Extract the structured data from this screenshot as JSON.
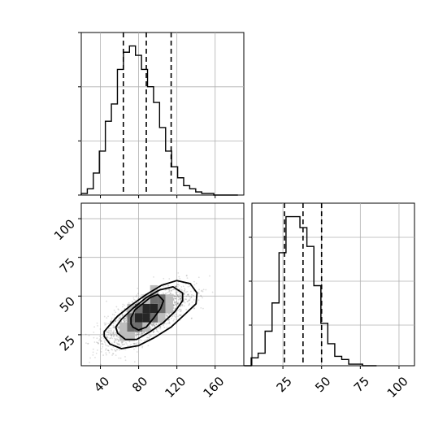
{
  "chart_data": {
    "type": "corner",
    "parameters": [
      {
        "index": 0,
        "range": [
          20,
          190
        ],
        "ticks": [
          40,
          80,
          120,
          160
        ],
        "tick_labels": [
          "40",
          "80",
          "120",
          "160"
        ]
      },
      {
        "index": 1,
        "range": [
          5,
          110
        ],
        "ticks": [
          25,
          50,
          75,
          100
        ],
        "tick_labels": [
          "25",
          "50",
          "75",
          "100"
        ]
      }
    ],
    "histograms": [
      {
        "parameter": 0,
        "bin_edges": [
          20,
          26.3,
          32.6,
          38.9,
          45.2,
          51.5,
          57.8,
          64.1,
          70.4,
          76.7,
          83,
          89.3,
          95.6,
          101.9,
          108.2,
          114.5,
          120.8,
          127.1,
          133.4,
          139.7,
          146,
          152.3,
          158.6,
          164.9,
          171.2,
          177.5,
          183.8
        ],
        "counts": [
          1,
          4,
          14,
          28,
          47,
          58,
          80,
          91,
          95,
          89,
          80,
          69,
          59,
          43,
          28,
          18,
          11,
          6,
          4,
          2,
          1,
          1,
          0,
          0,
          0,
          0
        ],
        "quantile_lines": [
          64,
          88,
          114
        ]
      },
      {
        "parameter": 1,
        "bin_edges": [
          0,
          4.5,
          9,
          13.5,
          18,
          22.5,
          27,
          31.5,
          36,
          40.5,
          45,
          49.5,
          54,
          58.5,
          63,
          67.5,
          72,
          76.5,
          81,
          85.5
        ],
        "counts": [
          0,
          5,
          8,
          22,
          40,
          72,
          95,
          95,
          88,
          76,
          51,
          27,
          14,
          6,
          4,
          1,
          1,
          0,
          0
        ],
        "quantile_lines": [
          26,
          38,
          50
        ]
      }
    ],
    "joint": {
      "x_parameter": 0,
      "y_parameter": 1,
      "center": [
        88,
        37
      ],
      "density_cells": [
        {
          "x": 80,
          "y": 36,
          "level": 3
        },
        {
          "x": 88,
          "y": 36,
          "level": 3
        },
        {
          "x": 88,
          "y": 42,
          "level": 3
        },
        {
          "x": 96,
          "y": 42,
          "level": 3
        },
        {
          "x": 72,
          "y": 36,
          "level": 2
        },
        {
          "x": 72,
          "y": 30,
          "level": 2
        },
        {
          "x": 80,
          "y": 30,
          "level": 2
        },
        {
          "x": 80,
          "y": 42,
          "level": 2
        },
        {
          "x": 96,
          "y": 36,
          "level": 2
        },
        {
          "x": 96,
          "y": 48,
          "level": 2
        },
        {
          "x": 104,
          "y": 42,
          "level": 2
        },
        {
          "x": 104,
          "y": 48,
          "level": 2
        },
        {
          "x": 64,
          "y": 30,
          "level": 1
        },
        {
          "x": 64,
          "y": 24,
          "level": 1
        },
        {
          "x": 72,
          "y": 24,
          "level": 1
        },
        {
          "x": 72,
          "y": 42,
          "level": 1
        },
        {
          "x": 88,
          "y": 30,
          "level": 1
        },
        {
          "x": 88,
          "y": 48,
          "level": 1
        },
        {
          "x": 112,
          "y": 42,
          "level": 1
        },
        {
          "x": 112,
          "y": 48,
          "level": 1
        },
        {
          "x": 104,
          "y": 36,
          "level": 1
        },
        {
          "x": 96,
          "y": 54,
          "level": 1
        }
      ],
      "contours": [
        {
          "level": "inner",
          "points": [
            [
              74,
              30
            ],
            [
              80,
              28
            ],
            [
              88,
              30
            ],
            [
              96,
              36
            ],
            [
              103,
              42
            ],
            [
              106,
              47
            ],
            [
              100,
              51
            ],
            [
              92,
              49
            ],
            [
              84,
              45
            ],
            [
              76,
              41
            ],
            [
              72,
              36
            ],
            [
              72,
              32
            ]
          ]
        },
        {
          "level": "middle",
          "points": [
            [
              58,
              26
            ],
            [
              66,
              22
            ],
            [
              78,
              22
            ],
            [
              92,
              27
            ],
            [
              106,
              33
            ],
            [
              118,
              40
            ],
            [
              126,
              47
            ],
            [
              126,
              52
            ],
            [
              116,
              56
            ],
            [
              102,
              54
            ],
            [
              88,
              49
            ],
            [
              74,
              42
            ],
            [
              62,
              35
            ],
            [
              56,
              30
            ]
          ]
        },
        {
          "level": "outer",
          "points": [
            [
              44,
              24
            ],
            [
              50,
              19
            ],
            [
              62,
              16
            ],
            [
              80,
              18
            ],
            [
              96,
              23
            ],
            [
              114,
              30
            ],
            [
              128,
              38
            ],
            [
              140,
              45
            ],
            [
              141,
              52
            ],
            [
              134,
              58
            ],
            [
              120,
              60
            ],
            [
              104,
              57
            ],
            [
              88,
              51
            ],
            [
              72,
              44
            ],
            [
              58,
              37
            ],
            [
              48,
              30
            ],
            [
              44,
              27
            ]
          ]
        }
      ],
      "scatter_points": 2500
    }
  }
}
